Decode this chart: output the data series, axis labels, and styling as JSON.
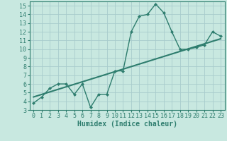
{
  "x": [
    0,
    1,
    2,
    3,
    4,
    5,
    6,
    7,
    8,
    9,
    10,
    11,
    12,
    13,
    14,
    15,
    16,
    17,
    18,
    19,
    20,
    21,
    22,
    23
  ],
  "y_line": [
    3.8,
    4.5,
    5.5,
    6.0,
    6.0,
    4.8,
    6.0,
    3.3,
    4.8,
    4.8,
    7.5,
    7.5,
    12.0,
    13.8,
    14.0,
    15.2,
    14.2,
    12.0,
    10.0,
    10.0,
    10.2,
    10.5,
    12.0,
    11.5
  ],
  "trend_x": [
    0,
    23
  ],
  "trend_y": [
    4.5,
    11.2
  ],
  "line_color": "#2e7d6e",
  "bg_color": "#c8e8e0",
  "grid_color": "#a8cccc",
  "xlabel": "Humidex (Indice chaleur)",
  "xlim": [
    -0.5,
    23.5
  ],
  "ylim": [
    3,
    15.5
  ],
  "yticks": [
    3,
    4,
    5,
    6,
    7,
    8,
    9,
    10,
    11,
    12,
    13,
    14,
    15
  ],
  "xticks": [
    0,
    1,
    2,
    3,
    4,
    5,
    6,
    7,
    8,
    9,
    10,
    11,
    12,
    13,
    14,
    15,
    16,
    17,
    18,
    19,
    20,
    21,
    22,
    23
  ],
  "marker_size": 2.5,
  "line_width": 1.0,
  "font_size": 6,
  "xlabel_fontsize": 7
}
